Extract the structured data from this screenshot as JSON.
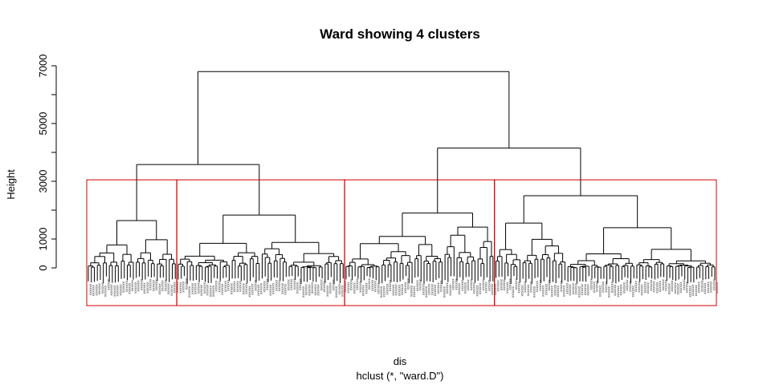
{
  "chart_data": {
    "type": "dendrogram",
    "title": "Ward showing 4 clusters",
    "ylabel": "Height",
    "xlabel": "dis",
    "sub": "hclust (*, \"ward.D\")",
    "yticks": [
      0,
      1000,
      3000,
      5000,
      7000
    ],
    "ylim": [
      0,
      7000
    ],
    "leaf_count": 210,
    "cluster_boxes_color": "#d00000",
    "line_color": "#000000",
    "tree": {
      "h": 6800,
      "children": [
        {
          "h": 3580,
          "children": [
            {
              "h": 1640,
              "leaves": 30
            },
            {
              "h": 1830,
              "leaves": 56
            }
          ]
        },
        {
          "h": 4150,
          "children": [
            {
              "h": 1900,
              "leaves": 50
            },
            {
              "h": 2500,
              "leaves": 74
            }
          ]
        }
      ]
    }
  }
}
